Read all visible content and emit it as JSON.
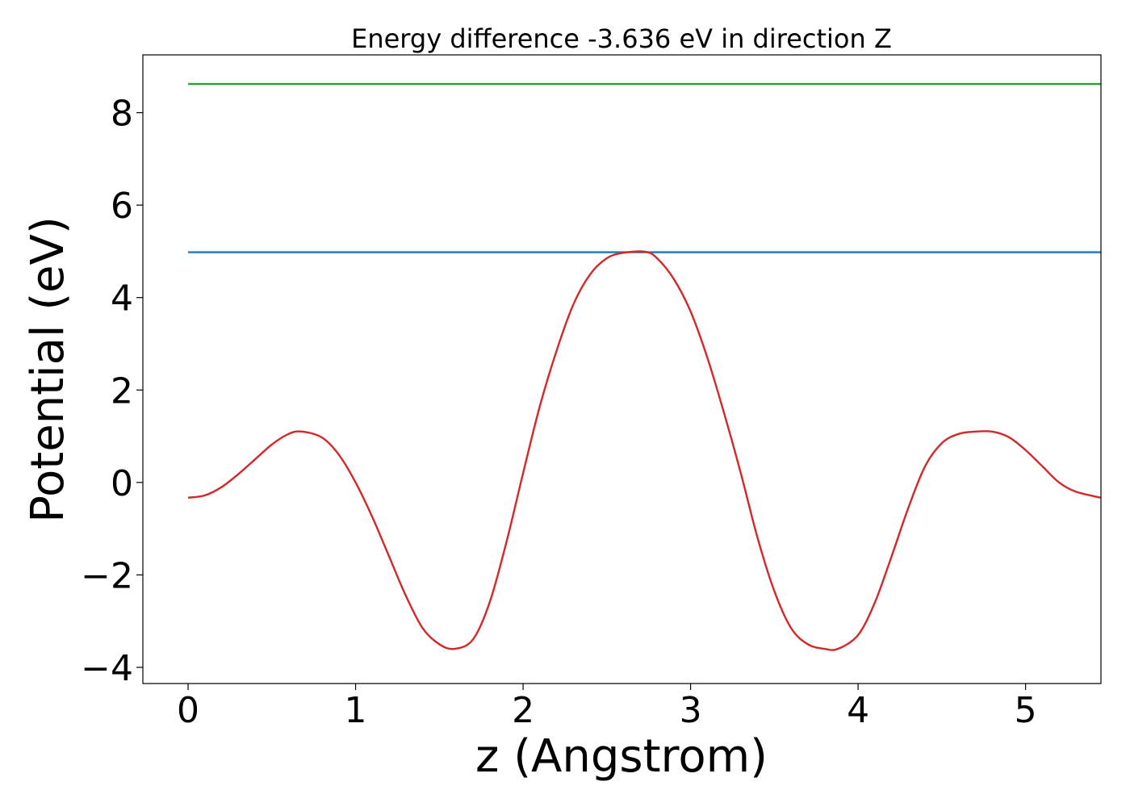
{
  "chart_data": {
    "type": "line",
    "title": "Energy difference -3.636 eV in direction Z",
    "xlabel": "z (Angstrom)",
    "ylabel": "Potential (eV)",
    "xlim": [
      -0.27,
      5.45
    ],
    "ylim": [
      -4.35,
      9.25
    ],
    "grid": false,
    "x_ticks": [
      {
        "value": 0,
        "label": "0"
      },
      {
        "value": 1,
        "label": "1"
      },
      {
        "value": 2,
        "label": "2"
      },
      {
        "value": 3,
        "label": "3"
      },
      {
        "value": 4,
        "label": "4"
      },
      {
        "value": 5,
        "label": "5"
      }
    ],
    "y_ticks": [
      {
        "value": -4,
        "label": "−4"
      },
      {
        "value": -2,
        "label": "−2"
      },
      {
        "value": 0,
        "label": "0"
      },
      {
        "value": 2,
        "label": "2"
      },
      {
        "value": 4,
        "label": "4"
      },
      {
        "value": 6,
        "label": "6"
      },
      {
        "value": 8,
        "label": "8"
      }
    ],
    "series": [
      {
        "color": "#2ca02c",
        "x": [
          0,
          5.45
        ],
        "y": [
          8.62,
          8.62
        ]
      },
      {
        "color": "#1f77b4",
        "x": [
          0,
          5.45
        ],
        "y": [
          4.98,
          4.98
        ]
      },
      {
        "color": "#d62728",
        "x": [
          0,
          0.1,
          0.2,
          0.3,
          0.4,
          0.5,
          0.6,
          0.68,
          0.8,
          0.9,
          1.0,
          1.1,
          1.2,
          1.3,
          1.4,
          1.5,
          1.59,
          1.7,
          1.8,
          1.9,
          2.0,
          2.1,
          2.2,
          2.3,
          2.4,
          2.5,
          2.6,
          2.73,
          2.8,
          2.9,
          3.0,
          3.1,
          3.2,
          3.3,
          3.4,
          3.5,
          3.6,
          3.7,
          3.8,
          3.88,
          4.0,
          4.1,
          4.2,
          4.3,
          4.4,
          4.5,
          4.6,
          4.7,
          4.8,
          4.9,
          5.0,
          5.1,
          5.2,
          5.3,
          5.45
        ],
        "y": [
          -0.33,
          -0.28,
          -0.1,
          0.18,
          0.5,
          0.82,
          1.05,
          1.1,
          0.97,
          0.6,
          0.0,
          -0.75,
          -1.6,
          -2.45,
          -3.15,
          -3.5,
          -3.6,
          -3.4,
          -2.6,
          -1.3,
          0.2,
          1.65,
          2.85,
          3.85,
          4.5,
          4.85,
          4.97,
          4.99,
          4.85,
          4.4,
          3.7,
          2.7,
          1.5,
          0.2,
          -1.2,
          -2.35,
          -3.15,
          -3.5,
          -3.6,
          -3.6,
          -3.3,
          -2.6,
          -1.6,
          -0.55,
          0.35,
          0.85,
          1.05,
          1.1,
          1.1,
          0.98,
          0.7,
          0.35,
          0.0,
          -0.2,
          -0.33
        ]
      }
    ]
  }
}
